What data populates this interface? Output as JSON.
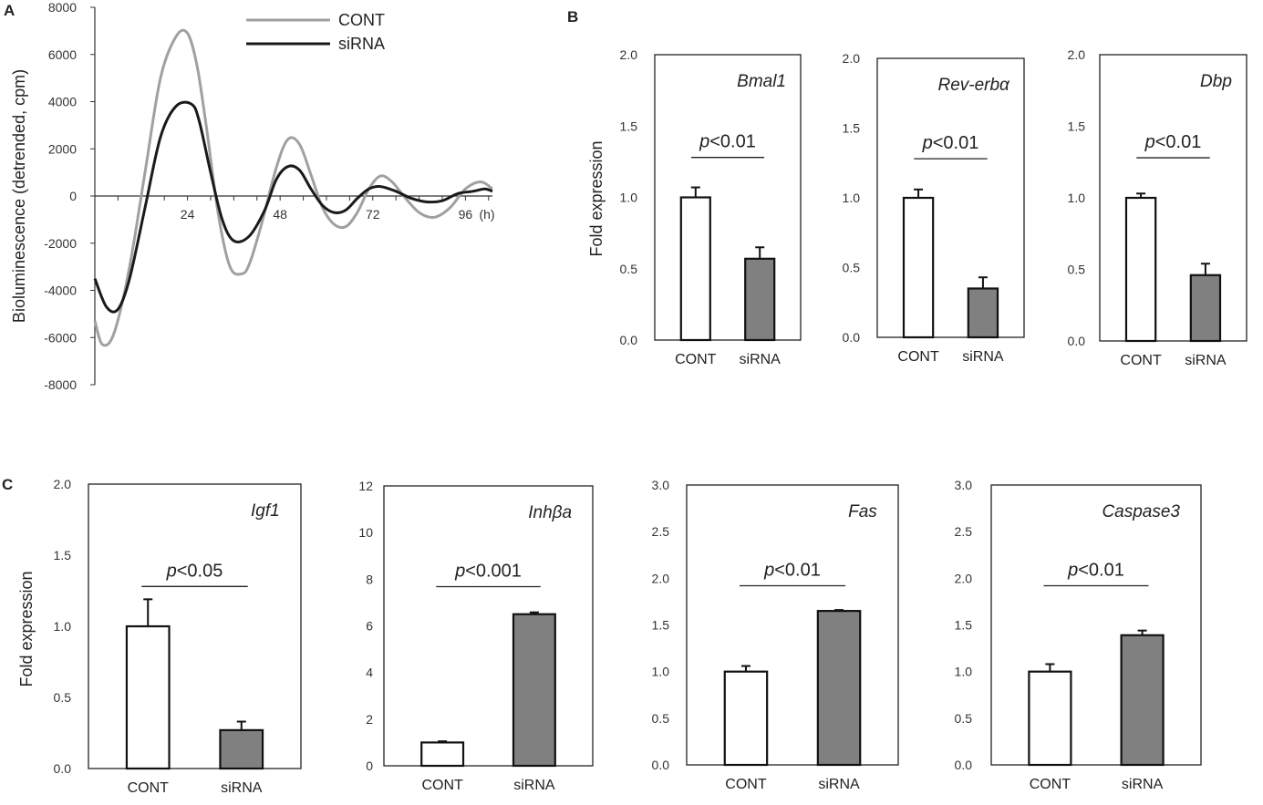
{
  "chart_data": [
    {
      "panel": "A",
      "type": "line",
      "ylabel": "Bioluminescence (detrended, cpm)",
      "ylim": [
        -8000,
        8000
      ],
      "yticks": [
        "8000",
        "6000",
        "4000",
        "2000",
        "0",
        "-2000",
        "-4000",
        "-6000",
        "-8000"
      ],
      "xticks": [
        {
          "value": 24,
          "label": "24"
        },
        {
          "value": 48,
          "label": "48"
        },
        {
          "value": 72,
          "label": "72"
        },
        {
          "value": 96,
          "label": "96"
        }
      ],
      "xunit": "(h)",
      "series": [
        {
          "name": "CONT",
          "color": "#a0a0a0",
          "x": [
            0,
            2,
            5,
            9,
            13,
            17,
            21,
            24,
            26.5,
            29,
            32,
            35,
            38,
            40,
            43,
            47,
            50,
            53,
            56,
            59,
            62,
            65,
            68,
            71,
            74,
            77,
            80,
            84,
            88,
            92,
            96,
            100,
            103
          ],
          "y": [
            -5300,
            -6300,
            -5800,
            -3000,
            1000,
            5000,
            6750,
            6900,
            5500,
            2800,
            -800,
            -3000,
            -3300,
            -2900,
            -1300,
            1200,
            2400,
            2200,
            900,
            -500,
            -1200,
            -1300,
            -700,
            300,
            850,
            600,
            0,
            -700,
            -900,
            -500,
            300,
            600,
            300
          ]
        },
        {
          "name": "siRNA",
          "color": "#1a1a1a",
          "x": [
            0,
            3,
            6,
            9,
            13,
            17,
            21,
            25,
            27,
            30,
            33,
            36,
            40,
            44,
            47,
            50,
            53,
            56,
            59,
            62,
            65,
            68,
            71,
            74,
            78,
            82,
            86,
            90,
            94,
            98,
            101,
            103
          ],
          "y": [
            -3500,
            -4700,
            -4800,
            -3500,
            -500,
            2500,
            3800,
            3900,
            3200,
            1000,
            -1000,
            -1900,
            -1700,
            -600,
            700,
            1250,
            1100,
            300,
            -400,
            -700,
            -600,
            -100,
            300,
            400,
            200,
            -100,
            -250,
            -200,
            100,
            200,
            300,
            200
          ]
        }
      ]
    },
    {
      "panel": "B",
      "type": "bar",
      "gene": "Bmal1",
      "categories": [
        "CONT",
        "siRNA"
      ],
      "values": [
        1.0,
        0.57
      ],
      "errors": [
        0.07,
        0.08
      ],
      "ylim": [
        0,
        2.0
      ],
      "yticks": [
        "0.0",
        "0.5",
        "1.0",
        "1.5",
        "2.0"
      ],
      "ylabel": "Fold expression",
      "pvalue": "<0.01",
      "colors": [
        "#ffffff",
        "#808080"
      ]
    },
    {
      "panel": "B",
      "type": "bar",
      "gene": "Rev-erbα",
      "categories": [
        "CONT",
        "siRNA"
      ],
      "values": [
        1.0,
        0.35
      ],
      "errors": [
        0.06,
        0.08
      ],
      "ylim": [
        0,
        2.0
      ],
      "yticks": [
        "0.0",
        "0.5",
        "1.0",
        "1.5",
        "2.0"
      ],
      "ylabel": "",
      "pvalue": "<0.01",
      "colors": [
        "#ffffff",
        "#808080"
      ]
    },
    {
      "panel": "B",
      "type": "bar",
      "gene": "Dbp",
      "categories": [
        "CONT",
        "siRNA"
      ],
      "values": [
        1.0,
        0.46
      ],
      "errors": [
        0.03,
        0.08
      ],
      "ylim": [
        0,
        2.0
      ],
      "yticks": [
        "0.0",
        "0.5",
        "1.0",
        "1.5",
        "2.0"
      ],
      "ylabel": "",
      "pvalue": "<0.01",
      "colors": [
        "#ffffff",
        "#808080"
      ]
    },
    {
      "panel": "C",
      "type": "bar",
      "gene": "Igf1",
      "categories": [
        "CONT",
        "siRNA"
      ],
      "values": [
        1.0,
        0.27
      ],
      "errors": [
        0.19,
        0.06
      ],
      "ylim": [
        0,
        2.0
      ],
      "yticks": [
        "0.0",
        "0.5",
        "1.0",
        "1.5",
        "2.0"
      ],
      "ylabel": "Fold expression",
      "pvalue": "<0.05",
      "colors": [
        "#ffffff",
        "#808080"
      ]
    },
    {
      "panel": "C",
      "type": "bar",
      "gene": "Inhβa",
      "categories": [
        "CONT",
        "siRNA"
      ],
      "values": [
        1.0,
        6.5
      ],
      "errors": [
        0.05,
        0.08
      ],
      "ylim": [
        0,
        12
      ],
      "yticks": [
        "0",
        "2",
        "4",
        "6",
        "8",
        "10",
        "12"
      ],
      "ylabel": "",
      "pvalue": "<0.001",
      "colors": [
        "#ffffff",
        "#808080"
      ]
    },
    {
      "panel": "C",
      "type": "bar",
      "gene": "Fas",
      "categories": [
        "CONT",
        "siRNA"
      ],
      "values": [
        1.0,
        1.65
      ],
      "errors": [
        0.06,
        0.01
      ],
      "ylim": [
        0,
        3.0
      ],
      "yticks": [
        "0.0",
        "0.5",
        "1.0",
        "1.5",
        "2.0",
        "2.5",
        "3.0"
      ],
      "ylabel": "",
      "pvalue": "<0.01",
      "colors": [
        "#ffffff",
        "#808080"
      ]
    },
    {
      "panel": "C",
      "type": "bar",
      "gene": "Caspase3",
      "categories": [
        "CONT",
        "siRNA"
      ],
      "values": [
        1.0,
        1.39
      ],
      "errors": [
        0.08,
        0.05
      ],
      "ylim": [
        0,
        3.0
      ],
      "yticks": [
        "0.0",
        "0.5",
        "1.0",
        "1.5",
        "2.0",
        "2.5",
        "3.0"
      ],
      "ylabel": "",
      "pvalue": "<0.01",
      "colors": [
        "#ffffff",
        "#808080"
      ]
    }
  ],
  "labels": {
    "panel_a": "A",
    "panel_b": "B",
    "panel_c": "C",
    "p_symbol": "p"
  }
}
